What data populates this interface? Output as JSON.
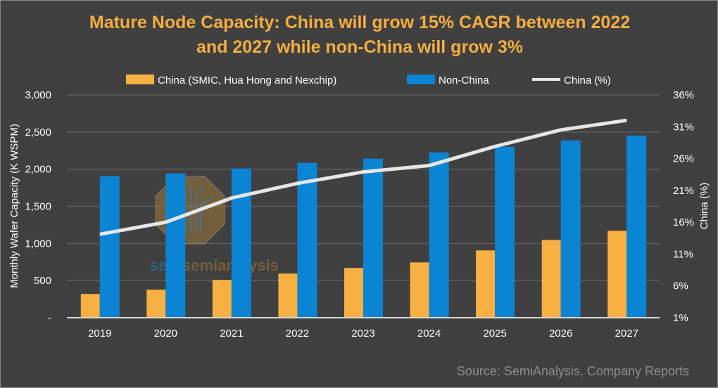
{
  "chart_data": {
    "type": "bar+line",
    "title_line1": "Mature Node Capacity:  China will grow 15% CAGR between 2022",
    "title_line2": "and 2027 while non-China will grow 3%",
    "categories": [
      "2019",
      "2020",
      "2021",
      "2022",
      "2023",
      "2024",
      "2025",
      "2026",
      "2027"
    ],
    "series": [
      {
        "name": "China  (SMIC, Hua Hong and Nexchip)",
        "type": "bar",
        "axis": "left",
        "color": "#F7B041",
        "values": [
          320,
          377,
          509,
          594,
          670,
          745,
          906,
          1047,
          1170
        ]
      },
      {
        "name": "Non-China",
        "type": "bar",
        "axis": "left",
        "color": "#0B84D4",
        "values": [
          1906,
          1943,
          2009,
          2085,
          2142,
          2226,
          2302,
          2387,
          2453
        ]
      },
      {
        "name": "China (%)",
        "type": "line",
        "axis": "right",
        "color": "#E6E6E6",
        "values": [
          14.1,
          16.0,
          19.8,
          22.1,
          23.9,
          24.9,
          27.9,
          30.5,
          32.0
        ]
      }
    ],
    "ylabel": "Monthly Wafer Capacity (K WSPM)",
    "y2label": "China (%)",
    "ylim": [
      0,
      3000
    ],
    "y2lim": [
      1,
      36
    ],
    "yticks": [
      "-",
      "500",
      "1,000",
      "1,500",
      "2,000",
      "2,500",
      "3,000"
    ],
    "y2ticks": [
      "1%",
      "6%",
      "11%",
      "16%",
      "21%",
      "26%",
      "31%",
      "36%"
    ],
    "grid": true,
    "legend": "top",
    "source": "Source: SemiAnalysis, Company Reports",
    "watermark": "semianalysis"
  }
}
